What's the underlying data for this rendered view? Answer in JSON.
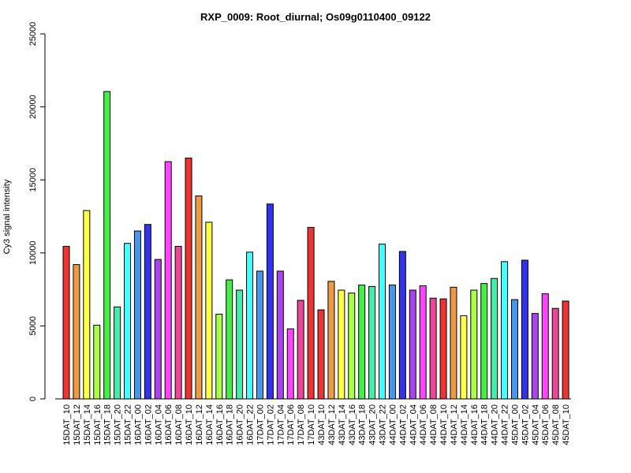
{
  "chart_data": {
    "type": "bar",
    "title": "RXP_0009: Root_diurnal; Os09g0110400_09122",
    "xlabel": "",
    "ylabel": "Cy3 signal intensity",
    "ylim": [
      0,
      25000
    ],
    "yticks": [
      0,
      5000,
      10000,
      15000,
      20000,
      25000
    ],
    "grid": false,
    "legend": "none",
    "categories": [
      "15DAT_10",
      "15DAT_12",
      "15DAT_14",
      "15DAT_16",
      "15DAT_18",
      "15DAT_20",
      "15DAT_22",
      "16DAT_00",
      "16DAT_02",
      "16DAT_04",
      "16DAT_06",
      "16DAT_08",
      "16DAT_10",
      "16DAT_12",
      "16DAT_14",
      "16DAT_16",
      "16DAT_18",
      "16DAT_20",
      "16DAT_22",
      "17DAT_00",
      "17DAT_02",
      "17DAT_04",
      "17DAT_06",
      "17DAT_08",
      "17DAT_10",
      "43DAT_10",
      "43DAT_12",
      "43DAT_14",
      "43DAT_16",
      "43DAT_18",
      "43DAT_20",
      "43DAT_22",
      "44DAT_00",
      "44DAT_02",
      "44DAT_04",
      "44DAT_06",
      "44DAT_08",
      "44DAT_10",
      "44DAT_12",
      "44DAT_14",
      "44DAT_16",
      "44DAT_18",
      "44DAT_20",
      "44DAT_22",
      "45DAT_00",
      "45DAT_02",
      "45DAT_04",
      "45DAT_06",
      "45DAT_08",
      "45DAT_10"
    ],
    "values": [
      10450,
      9200,
      12900,
      5050,
      21050,
      6300,
      10650,
      11500,
      11950,
      9550,
      16250,
      10450,
      16500,
      13900,
      12100,
      5800,
      8150,
      7450,
      10050,
      8750,
      13350,
      8750,
      4800,
      6750,
      11750,
      6100,
      8050,
      7450,
      7250,
      7800,
      7700,
      10600,
      7800,
      10100,
      7450,
      7750,
      6900,
      6850,
      7650,
      5700,
      7450,
      7900,
      8250,
      9400,
      6800,
      9500,
      5850,
      7200,
      6200,
      6700
    ],
    "colors": [
      "#ee3333",
      "#ee9944",
      "#ffff44",
      "#aaff44",
      "#44ee44",
      "#44eeaa",
      "#44ffff",
      "#4499ee",
      "#3333ee",
      "#aa44ee",
      "#ff44ff",
      "#ee4499",
      "#ee3333",
      "#ee9944",
      "#ffff44",
      "#aaff44",
      "#44ee44",
      "#44eeaa",
      "#44ffff",
      "#4499ee",
      "#3333ee",
      "#aa44ee",
      "#ff44ff",
      "#ee4499",
      "#ee3333",
      "#ee3333",
      "#ee9944",
      "#ffff44",
      "#aaff44",
      "#44ee44",
      "#44eeaa",
      "#44ffff",
      "#4499ee",
      "#3333ee",
      "#aa44ee",
      "#ff44ff",
      "#ee4499",
      "#ee3333",
      "#ee9944",
      "#ffff44",
      "#aaff44",
      "#44ee44",
      "#44eeaa",
      "#44ffff",
      "#4499ee",
      "#3333ee",
      "#aa44ee",
      "#ff44ff",
      "#ee4499",
      "#ee3333"
    ]
  }
}
